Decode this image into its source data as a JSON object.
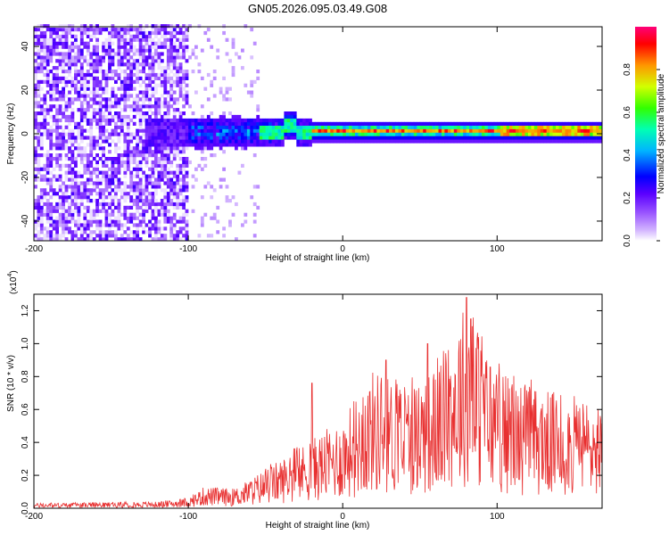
{
  "chart_data": [
    {
      "type": "heatmap",
      "title": "GN05.2026.095.03.49.G08",
      "xlabel": "Height of straight line (km)",
      "ylabel": "Frequency (Hz)",
      "xlim": [
        -200,
        168
      ],
      "ylim": [
        -49,
        49
      ],
      "x_ticks": [
        -200,
        -100,
        0,
        100
      ],
      "y_ticks": [
        -40,
        -20,
        0,
        20,
        40
      ],
      "colorbar": {
        "label": "Normalized spectral amplitude",
        "range": [
          0.0,
          1.0
        ],
        "ticks": [
          "0.0",
          "0.2",
          "0.4",
          "0.6",
          "0.8"
        ],
        "colormap": [
          "#ffffff",
          "#b48cff",
          "#6600ff",
          "#0000ff",
          "#00c8ff",
          "#00ff80",
          "#c8ff00",
          "#ff9600",
          "#ff0000",
          "#ff0078"
        ]
      },
      "band_profile": [
        {
          "x": -200,
          "peak": 0.15
        },
        {
          "x": -110,
          "peak": 0.2
        },
        {
          "x": -100,
          "peak": 0.4
        },
        {
          "x": -60,
          "peak": 0.45
        },
        {
          "x": -40,
          "peak": 0.5
        },
        {
          "x": 0,
          "peak": 0.85
        },
        {
          "x": 50,
          "peak": 0.9
        },
        {
          "x": 100,
          "peak": 0.85
        },
        {
          "x": 168,
          "peak": 0.8
        }
      ]
    },
    {
      "type": "line",
      "xlabel": "Height of straight line (km)",
      "ylabel": "SNR (10 * v/v)",
      "y_multiplier": "(x10",
      "y_exponent": "4",
      "y_multiplier_close": ")",
      "xlim": [
        -200,
        168
      ],
      "ylim": [
        0,
        1.3
      ],
      "x_ticks": [
        -200,
        -100,
        0,
        100
      ],
      "y_ticks": [
        "0.0",
        "0.2",
        "0.4",
        "0.6",
        "0.8",
        "1.0",
        "1.2"
      ],
      "line_color": "#e83030",
      "envelope": [
        {
          "x": -200,
          "y": 0.03
        },
        {
          "x": -120,
          "y": 0.04
        },
        {
          "x": -100,
          "y": 0.06
        },
        {
          "x": -90,
          "y": 0.13
        },
        {
          "x": -70,
          "y": 0.12
        },
        {
          "x": -40,
          "y": 0.3
        },
        {
          "x": -20,
          "y": 0.42
        },
        {
          "x": 0,
          "y": 0.55
        },
        {
          "x": 20,
          "y": 0.85
        },
        {
          "x": 40,
          "y": 0.75
        },
        {
          "x": 60,
          "y": 0.85
        },
        {
          "x": 80,
          "y": 1.28
        },
        {
          "x": 100,
          "y": 0.85
        },
        {
          "x": 120,
          "y": 0.75
        },
        {
          "x": 140,
          "y": 0.7
        },
        {
          "x": 168,
          "y": 0.65
        }
      ],
      "peaks": [
        {
          "x": -20,
          "y": 0.76
        },
        {
          "x": 80,
          "y": 1.28
        },
        {
          "x": 83,
          "y": 1.15
        },
        {
          "x": 55,
          "y": 1.0
        },
        {
          "x": 28,
          "y": 0.9
        }
      ]
    }
  ]
}
